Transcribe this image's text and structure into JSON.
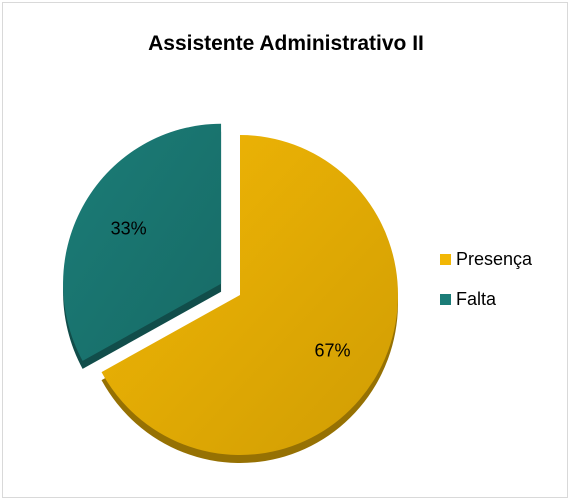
{
  "chart_data": {
    "type": "pie",
    "title": "Assistente Administrativo II",
    "slices": [
      {
        "name": "Presença",
        "value": 67,
        "label": "67%",
        "color": "#F2B705"
      },
      {
        "name": "Falta",
        "value": 33,
        "label": "33%",
        "color": "#1B7C77"
      }
    ],
    "legend_position": "right",
    "exploded": true,
    "style": "3d"
  }
}
